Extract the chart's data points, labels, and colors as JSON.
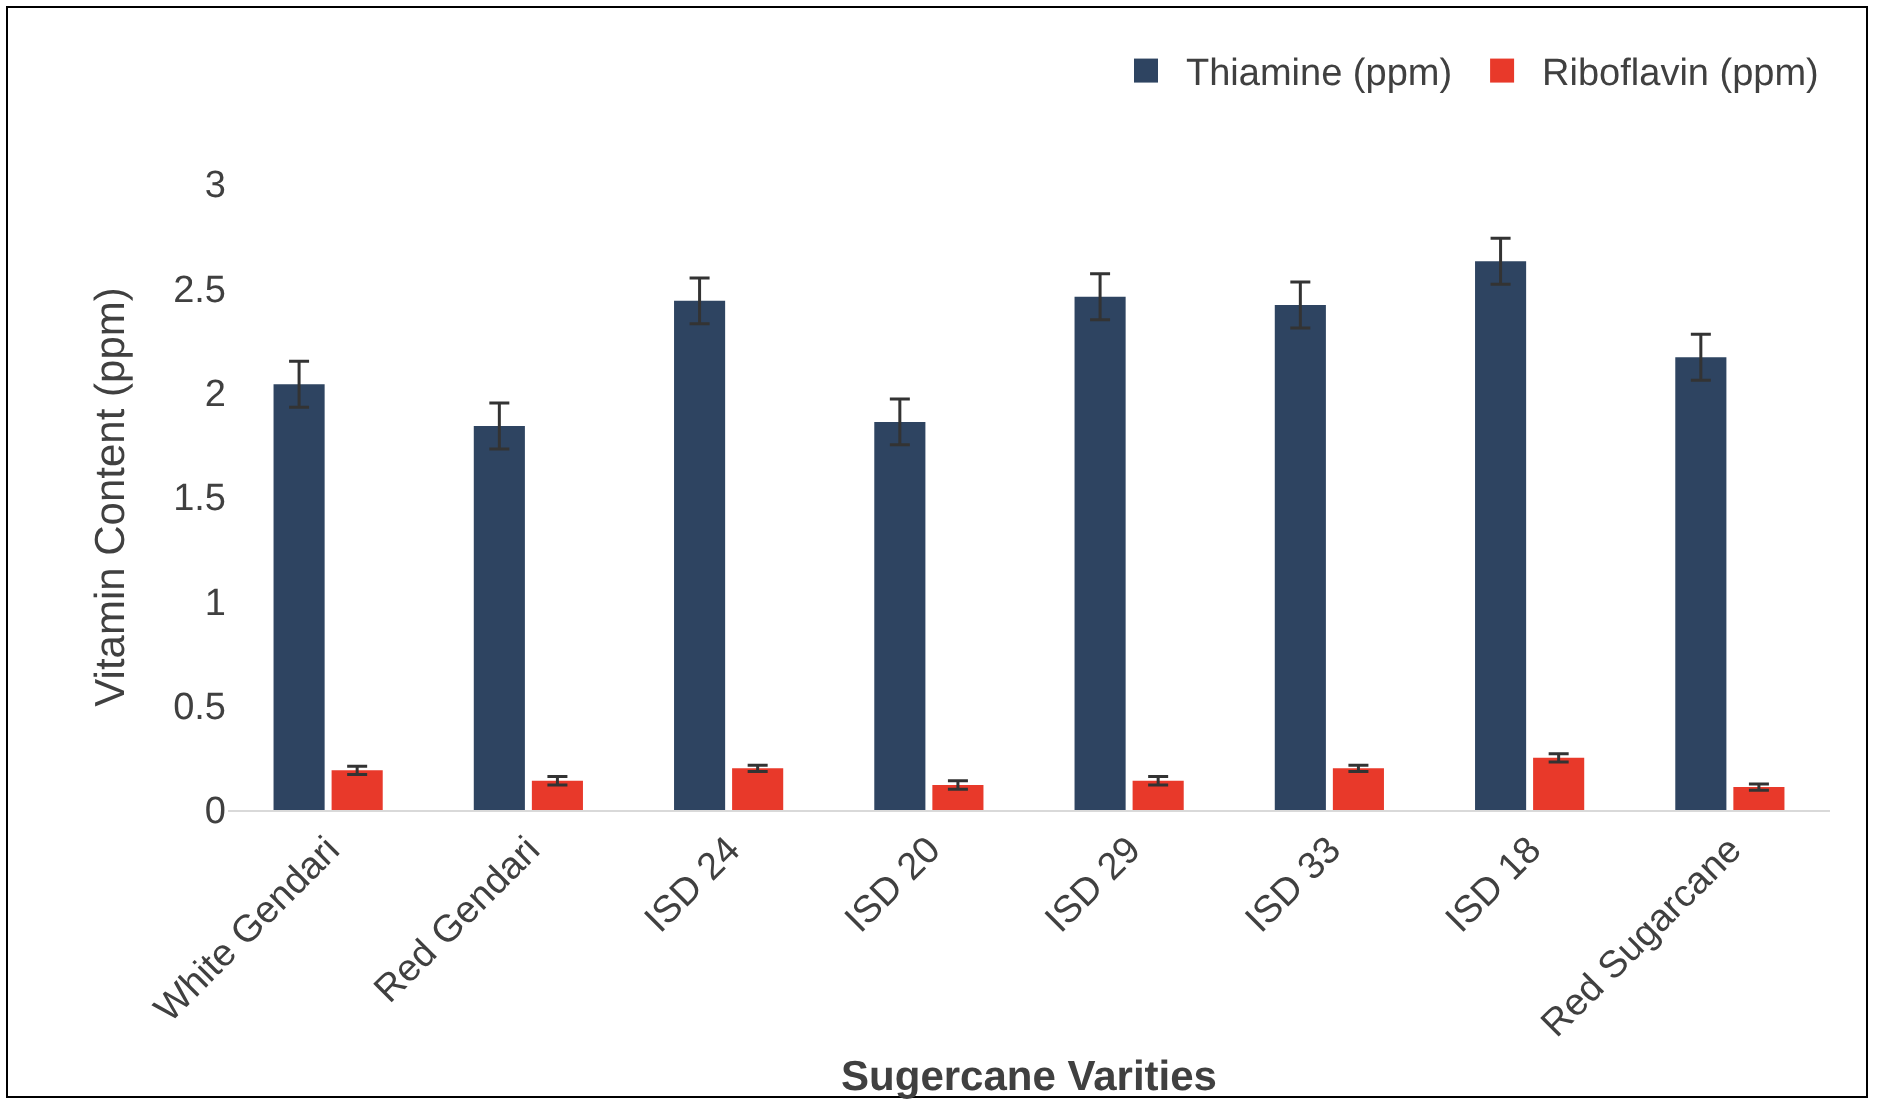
{
  "chart_data": {
    "type": "bar",
    "xlabel": "Sugercane Varities",
    "ylabel": "Vitamin Content (ppm)",
    "categories": [
      "White Gendari",
      "Red Gendari",
      "ISD 24",
      "ISD 20",
      "ISD 29",
      "ISD 33",
      "ISD 18",
      "Red Sugarcane"
    ],
    "series": [
      {
        "name": "Thiamine (ppm)",
        "color": "#2e4461",
        "values": [
          2.04,
          1.84,
          2.44,
          1.86,
          2.46,
          2.42,
          2.63,
          2.17
        ],
        "errors": [
          0.11,
          0.11,
          0.11,
          0.11,
          0.11,
          0.11,
          0.11,
          0.11
        ]
      },
      {
        "name": "Riboflavin (ppm)",
        "color": "#e8392a",
        "values": [
          0.19,
          0.14,
          0.2,
          0.12,
          0.14,
          0.2,
          0.25,
          0.11
        ],
        "errors": [
          0.02,
          0.02,
          0.015,
          0.02,
          0.02,
          0.015,
          0.02,
          0.015
        ]
      }
    ],
    "ylim": [
      0,
      3
    ],
    "yticks": [
      0,
      0.5,
      1,
      1.5,
      2,
      2.5,
      3
    ],
    "grid": false,
    "legend": "top right"
  }
}
